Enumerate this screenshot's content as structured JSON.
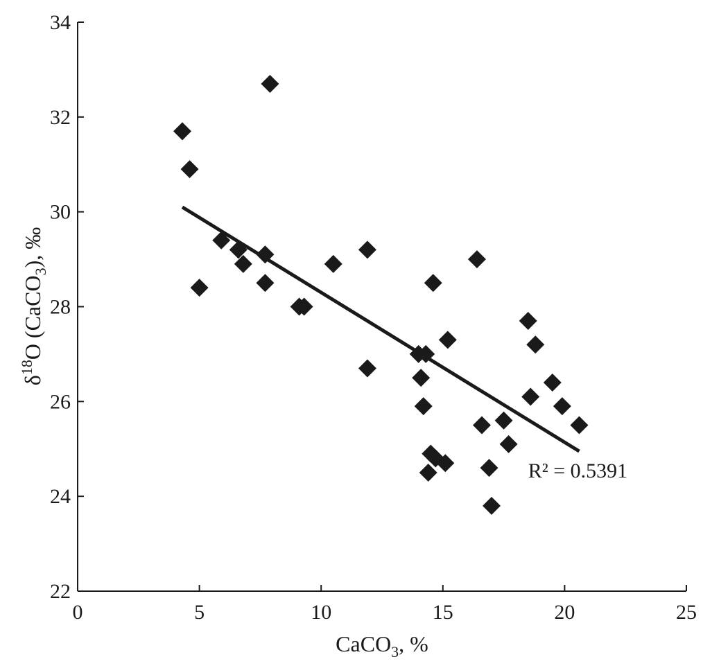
{
  "chart_data": {
    "type": "scatter",
    "xlabel_parts": [
      "CaCO",
      "3",
      ", %"
    ],
    "ylabel_parts": [
      "δ",
      "18",
      "O (CaCO",
      "3",
      "), ‰"
    ],
    "xlim": [
      0,
      25
    ],
    "ylim": [
      22,
      34
    ],
    "xticks": [
      0,
      5,
      10,
      15,
      20,
      25
    ],
    "yticks": [
      22,
      24,
      26,
      28,
      30,
      32,
      34
    ],
    "grid": false,
    "marker": "diamond",
    "points": [
      {
        "x": 4.3,
        "y": 31.7
      },
      {
        "x": 4.6,
        "y": 30.9
      },
      {
        "x": 5.0,
        "y": 28.4
      },
      {
        "x": 5.9,
        "y": 29.4
      },
      {
        "x": 6.6,
        "y": 29.2
      },
      {
        "x": 6.8,
        "y": 28.9
      },
      {
        "x": 7.7,
        "y": 29.1
      },
      {
        "x": 7.7,
        "y": 28.5
      },
      {
        "x": 7.9,
        "y": 32.7
      },
      {
        "x": 9.1,
        "y": 28.0
      },
      {
        "x": 9.3,
        "y": 28.0
      },
      {
        "x": 10.5,
        "y": 28.9
      },
      {
        "x": 11.9,
        "y": 29.2
      },
      {
        "x": 11.9,
        "y": 26.7
      },
      {
        "x": 14.0,
        "y": 27.0
      },
      {
        "x": 14.1,
        "y": 26.5
      },
      {
        "x": 14.2,
        "y": 25.9
      },
      {
        "x": 14.3,
        "y": 27.0
      },
      {
        "x": 14.4,
        "y": 24.5
      },
      {
        "x": 14.5,
        "y": 24.9
      },
      {
        "x": 14.6,
        "y": 28.5
      },
      {
        "x": 14.7,
        "y": 24.8
      },
      {
        "x": 15.1,
        "y": 24.7
      },
      {
        "x": 15.2,
        "y": 27.3
      },
      {
        "x": 16.4,
        "y": 29.0
      },
      {
        "x": 16.6,
        "y": 25.5
      },
      {
        "x": 16.9,
        "y": 24.6
      },
      {
        "x": 17.0,
        "y": 23.8
      },
      {
        "x": 17.5,
        "y": 25.6
      },
      {
        "x": 17.7,
        "y": 25.1
      },
      {
        "x": 18.5,
        "y": 27.7
      },
      {
        "x": 18.6,
        "y": 26.1
      },
      {
        "x": 18.8,
        "y": 27.2
      },
      {
        "x": 19.5,
        "y": 26.4
      },
      {
        "x": 19.9,
        "y": 25.9
      },
      {
        "x": 20.6,
        "y": 25.5
      }
    ],
    "trendline": {
      "x0": 4.3,
      "y0": 30.1,
      "x1": 20.6,
      "y1": 24.95
    },
    "annotations": [
      {
        "text": "R² = 0.5391",
        "x": 18.5,
        "y": 24.4
      }
    ]
  }
}
